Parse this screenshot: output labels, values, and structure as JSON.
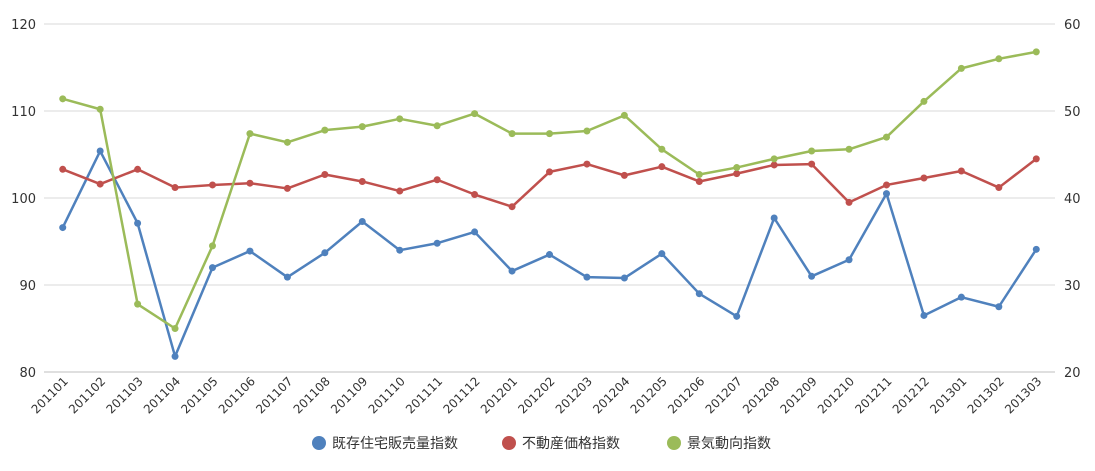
{
  "chart_data": {
    "type": "line",
    "categories": [
      "201101",
      "201102",
      "201103",
      "201104",
      "201105",
      "201106",
      "201107",
      "201108",
      "201109",
      "201110",
      "201111",
      "201112",
      "201201",
      "201202",
      "201203",
      "201204",
      "201205",
      "201206",
      "201207",
      "201208",
      "201209",
      "201210",
      "201211",
      "201212",
      "201301",
      "201302",
      "201303"
    ],
    "y_left": {
      "lim": [
        80,
        120
      ],
      "ticks": [
        80,
        90,
        100,
        110,
        120
      ]
    },
    "y_right": {
      "lim": [
        20,
        60
      ],
      "ticks": [
        20,
        30,
        40,
        50,
        60
      ]
    },
    "grid": true,
    "legend_position": "bottom",
    "series": [
      {
        "name": "既存住宅販売量指数",
        "color": "#4F81BD",
        "axis": "left",
        "values": [
          96.6,
          105.4,
          97.1,
          81.8,
          92.0,
          93.9,
          90.9,
          93.7,
          97.3,
          94.0,
          94.8,
          96.1,
          91.6,
          93.5,
          90.9,
          90.8,
          93.6,
          89.0,
          86.4,
          97.7,
          91.0,
          92.9,
          100.5,
          86.5,
          88.6,
          87.5,
          94.1
        ]
      },
      {
        "name": "不動産価格指数",
        "color": "#C0504D",
        "axis": "left",
        "values": [
          103.3,
          101.6,
          103.3,
          101.2,
          101.5,
          101.7,
          101.1,
          102.7,
          101.9,
          100.8,
          102.1,
          100.4,
          99.0,
          103.0,
          103.9,
          102.6,
          103.6,
          101.9,
          102.8,
          103.8,
          103.9,
          99.5,
          101.5,
          102.3,
          103.1,
          101.2,
          104.5
        ]
      },
      {
        "name": "景気動向指数",
        "color": "#9BBB59",
        "axis": "right",
        "values": [
          51.4,
          50.2,
          27.8,
          25.0,
          34.5,
          47.4,
          46.4,
          47.8,
          48.2,
          49.1,
          48.3,
          49.7,
          47.4,
          47.4,
          47.7,
          49.5,
          45.6,
          42.7,
          43.5,
          44.5,
          45.4,
          45.6,
          47.0,
          51.1,
          54.9,
          56.0,
          56.8
        ]
      }
    ]
  }
}
